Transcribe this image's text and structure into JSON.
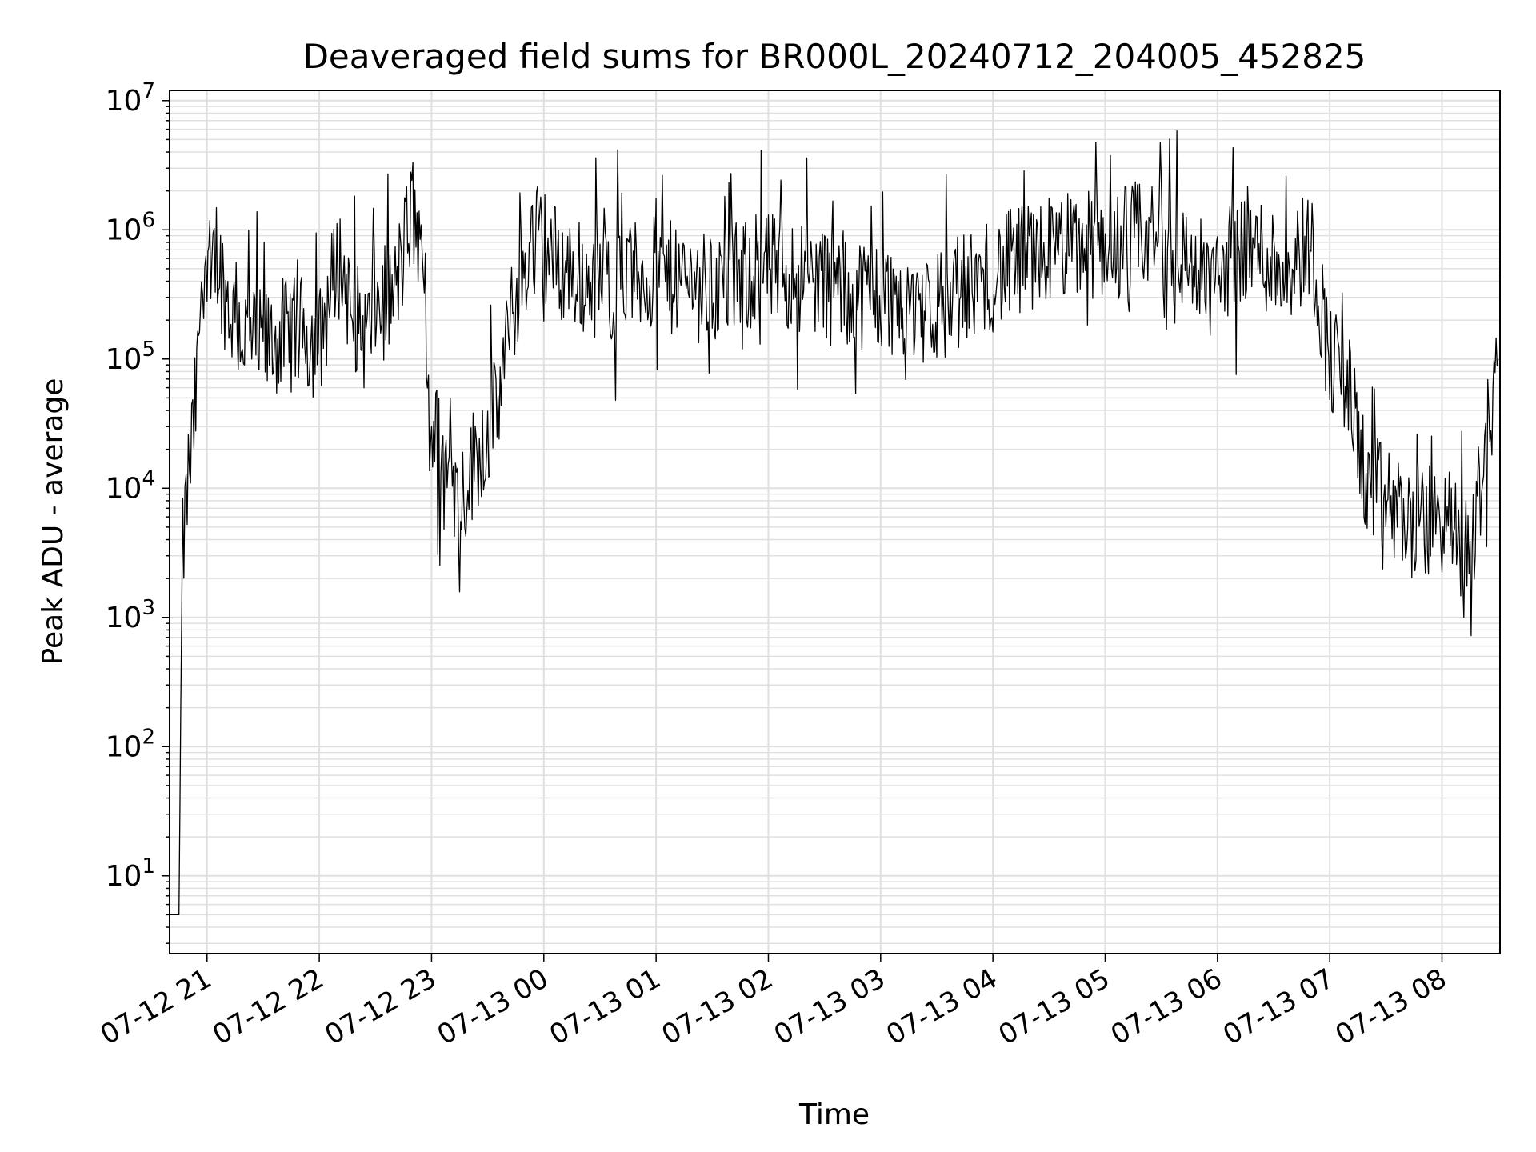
{
  "chart_data": {
    "type": "line",
    "title": "Deaveraged field sums for BR000L_20240712_204005_452825",
    "xlabel": "Time",
    "ylabel": "Peak ADU - average",
    "yscale": "log",
    "ylim": [
      2.5,
      12000000
    ],
    "xlim": [
      "2024-07-12 20:40",
      "2024-07-13 08:31"
    ],
    "grid": true,
    "line_color": "#000000",
    "grid_color": "#e0e0e0",
    "x_ticks": [
      "07-12 21",
      "07-12 22",
      "07-12 23",
      "07-13 00",
      "07-13 01",
      "07-13 02",
      "07-13 03",
      "07-13 04",
      "07-13 05",
      "07-13 06",
      "07-13 07",
      "07-13 08"
    ],
    "y_ticks": [
      {
        "value": 10,
        "base": "10",
        "exp": "1"
      },
      {
        "value": 100,
        "base": "10",
        "exp": "2"
      },
      {
        "value": 1000,
        "base": "10",
        "exp": "3"
      },
      {
        "value": 10000,
        "base": "10",
        "exp": "4"
      },
      {
        "value": 100000,
        "base": "10",
        "exp": "5"
      },
      {
        "value": 1000000,
        "base": "10",
        "exp": "6"
      },
      {
        "value": 10000000,
        "base": "10",
        "exp": "7"
      }
    ],
    "series": [
      {
        "x": [
          "2024-07-12 20:40",
          "2024-07-12 20:43",
          "2024-07-12 20:45",
          "2024-07-12 20:46",
          "2024-07-12 20:47",
          "2024-07-12 20:50",
          "2024-07-12 20:53",
          "2024-07-12 20:55",
          "2024-07-12 20:57",
          "2024-07-12 21:00",
          "2024-07-12 21:02",
          "2024-07-12 21:05",
          "2024-07-12 21:10",
          "2024-07-12 21:15",
          "2024-07-12 21:20",
          "2024-07-12 21:30",
          "2024-07-12 21:40",
          "2024-07-12 21:50",
          "2024-07-12 22:00",
          "2024-07-12 22:10",
          "2024-07-12 22:20",
          "2024-07-12 22:25",
          "2024-07-12 22:30",
          "2024-07-12 22:40",
          "2024-07-12 22:50",
          "2024-07-12 22:55",
          "2024-07-12 23:00",
          "2024-07-12 23:10",
          "2024-07-12 23:15",
          "2024-07-12 23:25",
          "2024-07-12 23:35",
          "2024-07-12 23:45",
          "2024-07-12 23:55",
          "2024-07-13 00:10",
          "2024-07-13 00:30",
          "2024-07-13 01:00",
          "2024-07-13 01:30",
          "2024-07-13 02:00",
          "2024-07-13 02:30",
          "2024-07-13 03:00",
          "2024-07-13 03:30",
          "2024-07-13 04:00",
          "2024-07-13 04:30",
          "2024-07-13 05:00",
          "2024-07-13 05:30",
          "2024-07-13 05:55",
          "2024-07-13 06:15",
          "2024-07-13 06:35",
          "2024-07-13 06:50",
          "2024-07-13 07:00",
          "2024-07-13 07:10",
          "2024-07-13 07:20",
          "2024-07-13 07:30",
          "2024-07-13 07:45",
          "2024-07-13 08:00",
          "2024-07-13 08:15",
          "2024-07-13 08:30"
        ],
        "values": [
          5,
          5,
          5,
          220,
          3000,
          12000,
          30000,
          80000,
          500000,
          700000,
          400000,
          700000,
          300000,
          200000,
          150000,
          120000,
          150000,
          160000,
          130000,
          600000,
          200000,
          150000,
          250000,
          300000,
          1500000,
          400000,
          30000,
          12000,
          8000,
          20000,
          40000,
          300000,
          1000000,
          500000,
          400000,
          450000,
          350000,
          500000,
          400000,
          300000,
          250000,
          450000,
          700000,
          800000,
          900000,
          400000,
          800000,
          500000,
          800000,
          100000,
          60000,
          10000,
          8000,
          5000,
          6000,
          3000,
          100000
        ]
      }
    ]
  }
}
